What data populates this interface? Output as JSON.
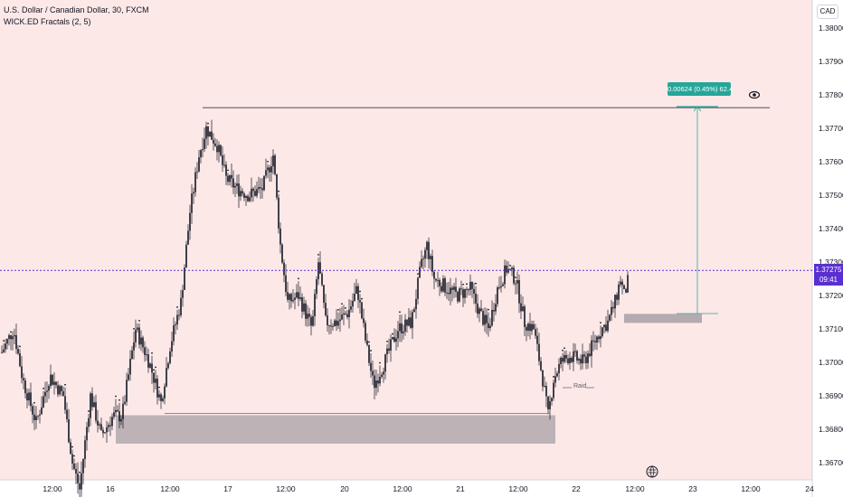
{
  "legend": {
    "symbol_line": "U.S. Dollar / Canadian Dollar, 30, FXCM",
    "indicator_line": "WICK.ED Fractals (2, 5)"
  },
  "currency_button": "CAD",
  "current_price": {
    "value": "1.37275",
    "countdown": "09:41"
  },
  "measure": {
    "label": "0.00624 (0.45%) 62.4"
  },
  "annotation": {
    "raid": "Raid"
  },
  "colors": {
    "background": "#fde8e8",
    "candle": "#131722",
    "price_line": "#5b2ed1",
    "measure": "#26a69a",
    "zone": "#a7a0a6",
    "accent": "#5b2ed1"
  },
  "icons": {
    "eye": "eye-icon",
    "timezone": "globe-clock-icon"
  },
  "chart_data": {
    "type": "candlestick",
    "symbol": "USDCAD",
    "interval": "30",
    "ylim": [
      1.3665,
      1.3808
    ],
    "y_ticks": [
      "1.38000",
      "1.37900",
      "1.37800",
      "1.37700",
      "1.37600",
      "1.37500",
      "1.37400",
      "1.37300",
      "1.37200",
      "1.37100",
      "1.37000",
      "1.36900",
      "1.36800",
      "1.36700"
    ],
    "x_ticks": [
      "12:00",
      "16",
      "12:00",
      "17",
      "12:00",
      "20",
      "12:00",
      "21",
      "12:00",
      "22",
      "12:00",
      "23",
      "12:00",
      "24"
    ],
    "current_price": 1.37275,
    "high_level": 1.3777,
    "low_level": 1.3685,
    "measured_move": {
      "from": 1.37146,
      "to": 1.3777,
      "change": 0.00624,
      "percent": 0.45,
      "pips": 62.4
    },
    "demand_zone": [
      1.36765,
      1.3685
    ],
    "small_zone": [
      1.37125,
      1.37145
    ],
    "grid": false
  }
}
